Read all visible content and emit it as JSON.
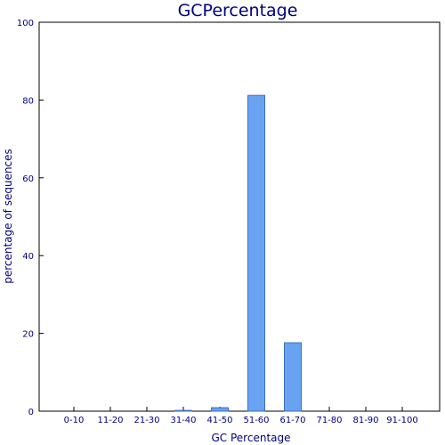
{
  "chart_data": {
    "type": "bar",
    "title": "GCPercentage",
    "xlabel": "GC Percentage",
    "ylabel": "percentage of sequences",
    "categories": [
      "0-10",
      "11-20",
      "21-30",
      "31-40",
      "41-50",
      "51-60",
      "61-70",
      "71-80",
      "81-90",
      "91-100"
    ],
    "values": [
      0,
      0,
      0,
      0.2,
      0.9,
      81.2,
      17.6,
      0,
      0,
      0
    ],
    "ylim": [
      0,
      100
    ],
    "yticks": [
      0,
      20,
      40,
      60,
      80,
      100
    ],
    "grid": false,
    "legend": "none",
    "colors": {
      "bar_fill": "#6aa2f2",
      "bar_stroke": "#3d6fbd",
      "text": "#00007f",
      "axis": "#000000"
    }
  }
}
